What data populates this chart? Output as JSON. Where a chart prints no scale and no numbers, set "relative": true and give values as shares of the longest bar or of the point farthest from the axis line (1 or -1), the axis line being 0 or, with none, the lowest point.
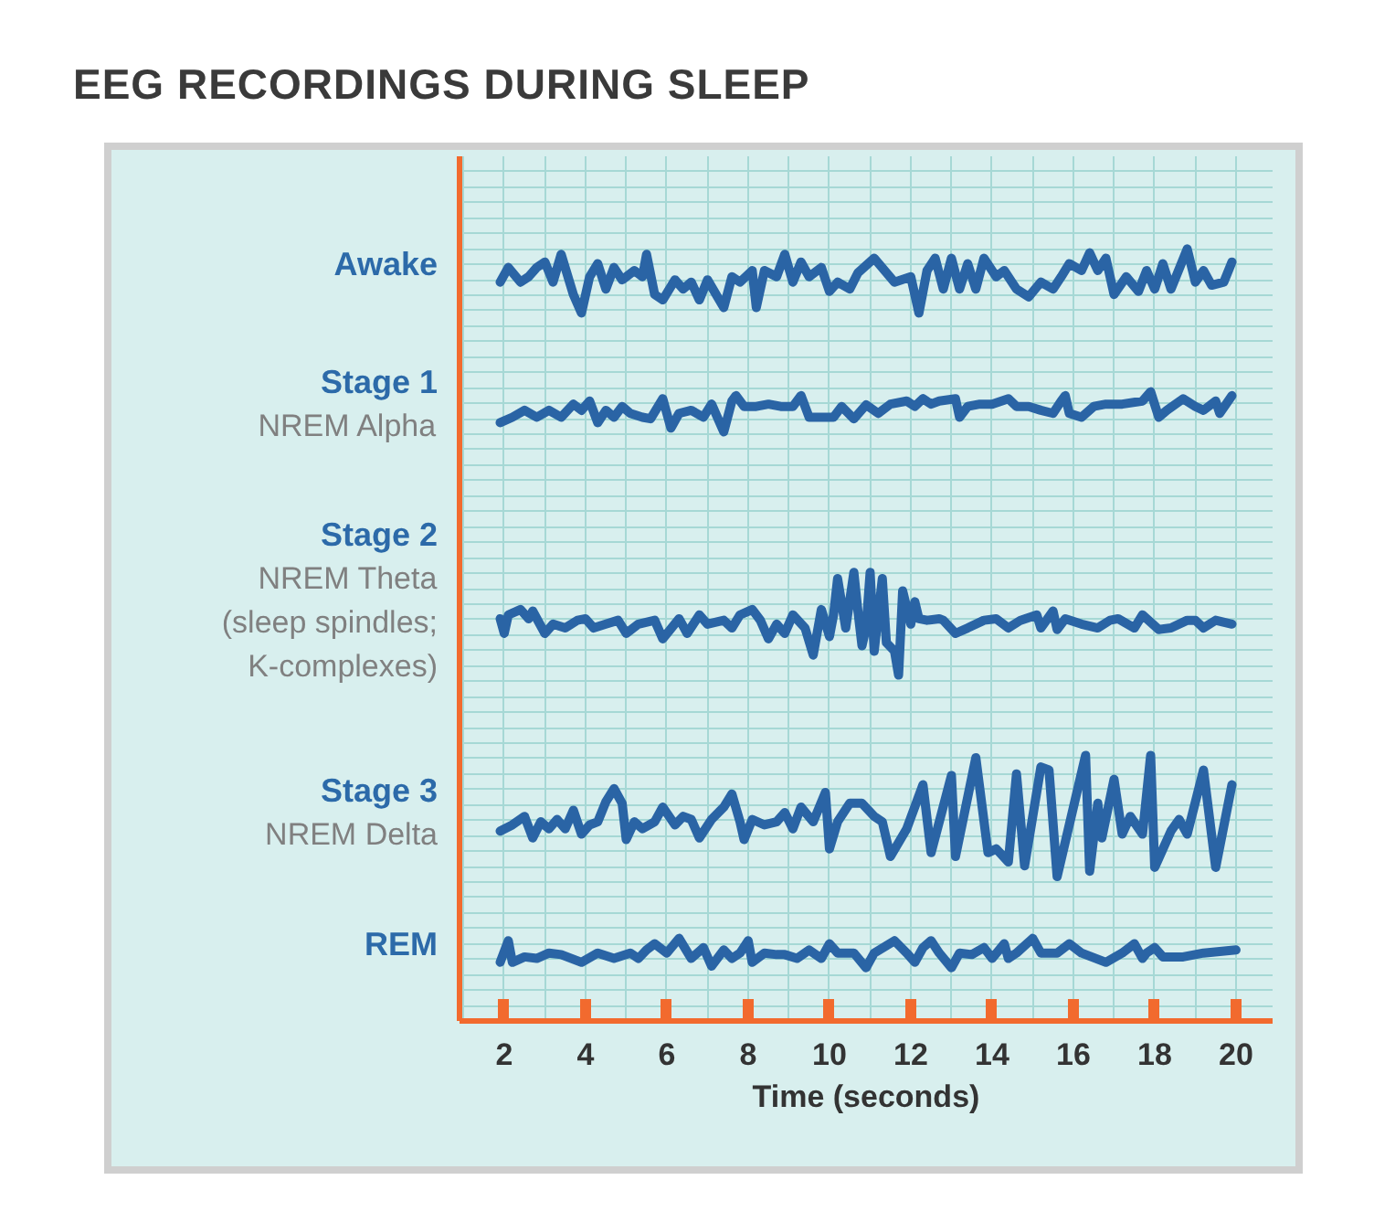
{
  "chart_data": {
    "type": "line",
    "title": "EEG RECORDINGS DURING SLEEP",
    "xlabel": "Time (seconds)",
    "relative": true,
    "xlim": [
      0.9,
      20.9
    ],
    "xticks": [
      2,
      4,
      6,
      8,
      10,
      12,
      14,
      16,
      18,
      20
    ],
    "grid": true,
    "series": [
      {
        "name": "Awake",
        "color": "#2a64a5",
        "x": [
          1.9,
          2.1,
          2.4,
          2.6,
          2.8,
          3.0,
          3.2,
          3.4,
          3.7,
          3.9,
          4.1,
          4.3,
          4.5,
          4.7,
          4.9,
          5.2,
          5.4,
          5.5,
          5.7,
          5.9,
          6.2,
          6.4,
          6.6,
          6.8,
          7.0,
          7.4,
          7.6,
          7.8,
          8.1,
          8.2,
          8.4,
          8.7,
          8.9,
          9.1,
          9.3,
          9.5,
          9.8,
          10.0,
          10.2,
          10.5,
          10.7,
          11.1,
          11.6,
          12.0,
          12.2,
          12.4,
          12.6,
          12.8,
          13.0,
          13.2,
          13.4,
          13.6,
          13.8,
          14.1,
          14.3,
          14.6,
          14.9,
          15.2,
          15.5,
          15.7,
          15.9,
          16.2,
          16.4,
          16.6,
          16.8,
          17.0,
          17.3,
          17.6,
          17.8,
          18.0,
          18.2,
          18.4,
          18.8,
          19.0,
          19.2,
          19.4,
          19.7,
          19.9
        ],
        "values": [
          0.957,
          0.976,
          0.957,
          0.964,
          0.976,
          0.983,
          0.957,
          0.993,
          0.941,
          0.917,
          0.964,
          0.981,
          0.948,
          0.976,
          0.96,
          0.972,
          0.964,
          0.993,
          0.941,
          0.934,
          0.96,
          0.948,
          0.957,
          0.934,
          0.96,
          0.924,
          0.964,
          0.957,
          0.972,
          0.924,
          0.972,
          0.964,
          0.993,
          0.957,
          0.983,
          0.964,
          0.976,
          0.945,
          0.957,
          0.948,
          0.969,
          0.988,
          0.957,
          0.964,
          0.917,
          0.972,
          0.988,
          0.948,
          0.988,
          0.948,
          0.981,
          0.948,
          0.988,
          0.964,
          0.972,
          0.948,
          0.938,
          0.957,
          0.948,
          0.964,
          0.981,
          0.972,
          0.995,
          0.972,
          0.988,
          0.941,
          0.964,
          0.945,
          0.972,
          0.948,
          0.981,
          0.948,
          1.0,
          0.957,
          0.972,
          0.953,
          0.957,
          0.983
        ]
      },
      {
        "name": "Stage 1\nNREM Alpha",
        "color": "#2a64a5",
        "x": [
          1.9,
          2.2,
          2.5,
          2.8,
          3.1,
          3.4,
          3.7,
          3.9,
          4.1,
          4.3,
          4.5,
          4.7,
          4.9,
          5.1,
          5.4,
          5.6,
          5.9,
          6.1,
          6.3,
          6.6,
          6.9,
          7.1,
          7.4,
          7.6,
          7.7,
          7.9,
          8.2,
          8.5,
          8.8,
          9.1,
          9.3,
          9.5,
          9.8,
          10.1,
          10.3,
          10.6,
          10.9,
          11.2,
          11.5,
          11.9,
          12.1,
          12.3,
          12.5,
          12.7,
          13.1,
          13.2,
          13.4,
          13.7,
          14.0,
          14.4,
          14.6,
          14.9,
          15.2,
          15.5,
          15.7,
          15.8,
          15.9,
          16.2,
          16.5,
          16.8,
          17.2,
          17.7,
          17.9,
          18.1,
          18.3,
          18.7,
          19.0,
          19.2,
          19.5,
          19.6,
          19.9
        ],
        "values": [
          0.775,
          0.782,
          0.791,
          0.782,
          0.791,
          0.782,
          0.799,
          0.791,
          0.803,
          0.775,
          0.791,
          0.782,
          0.796,
          0.787,
          0.782,
          0.78,
          0.806,
          0.768,
          0.787,
          0.791,
          0.782,
          0.799,
          0.763,
          0.803,
          0.81,
          0.796,
          0.796,
          0.799,
          0.796,
          0.796,
          0.81,
          0.782,
          0.782,
          0.782,
          0.796,
          0.78,
          0.798,
          0.787,
          0.799,
          0.803,
          0.796,
          0.806,
          0.799,
          0.803,
          0.806,
          0.782,
          0.796,
          0.799,
          0.799,
          0.806,
          0.796,
          0.796,
          0.791,
          0.787,
          0.803,
          0.81,
          0.787,
          0.782,
          0.796,
          0.799,
          0.799,
          0.803,
          0.815,
          0.782,
          0.791,
          0.806,
          0.796,
          0.791,
          0.803,
          0.787,
          0.81
        ]
      },
      {
        "name": "Stage 2\nNREM Theta\n(sleep spindles;\nK-complexes)",
        "color": "#2a64a5",
        "x": [
          1.9,
          2.0,
          2.1,
          2.4,
          2.6,
          2.7,
          3.0,
          3.2,
          3.5,
          3.8,
          4.0,
          4.2,
          4.5,
          4.8,
          5.0,
          5.3,
          5.7,
          5.9,
          6.3,
          6.5,
          6.8,
          7.0,
          7.4,
          7.6,
          7.8,
          8.1,
          8.3,
          8.5,
          8.7,
          8.9,
          9.1,
          9.4,
          9.6,
          9.8,
          10.0,
          10.1,
          10.2,
          10.4,
          10.6,
          10.7,
          10.8,
          10.9,
          11.0,
          11.1,
          11.3,
          11.4,
          11.6,
          11.7,
          11.8,
          12.0,
          12.1,
          12.2,
          12.4,
          12.7,
          12.8,
          13.1,
          13.4,
          13.8,
          14.1,
          14.4,
          14.7,
          15.1,
          15.2,
          15.5,
          15.6,
          15.8,
          16.2,
          16.6,
          16.9,
          17.1,
          17.5,
          17.7,
          18.1,
          18.4,
          18.8,
          19.0,
          19.2,
          19.5,
          19.9
        ],
        "values": [
          0.521,
          0.502,
          0.526,
          0.533,
          0.521,
          0.531,
          0.502,
          0.514,
          0.509,
          0.519,
          0.521,
          0.509,
          0.514,
          0.519,
          0.502,
          0.514,
          0.519,
          0.495,
          0.521,
          0.502,
          0.526,
          0.514,
          0.519,
          0.509,
          0.526,
          0.533,
          0.519,
          0.495,
          0.514,
          0.502,
          0.526,
          0.509,
          0.474,
          0.533,
          0.498,
          0.526,
          0.573,
          0.509,
          0.581,
          0.531,
          0.486,
          0.509,
          0.581,
          0.479,
          0.573,
          0.49,
          0.479,
          0.448,
          0.557,
          0.514,
          0.543,
          0.521,
          0.519,
          0.521,
          0.519,
          0.502,
          0.509,
          0.519,
          0.521,
          0.509,
          0.519,
          0.526,
          0.509,
          0.531,
          0.507,
          0.521,
          0.514,
          0.509,
          0.519,
          0.521,
          0.509,
          0.526,
          0.507,
          0.509,
          0.519,
          0.519,
          0.509,
          0.519,
          0.514
        ]
      },
      {
        "name": "Stage 3\nNREM Delta",
        "color": "#2a64a5",
        "x": [
          1.9,
          2.2,
          2.5,
          2.7,
          2.9,
          3.1,
          3.3,
          3.5,
          3.7,
          3.9,
          4.1,
          4.3,
          4.5,
          4.7,
          4.9,
          5.0,
          5.2,
          5.4,
          5.7,
          5.9,
          6.2,
          6.4,
          6.6,
          6.8,
          7.1,
          7.4,
          7.6,
          7.8,
          7.9,
          8.1,
          8.4,
          8.7,
          8.9,
          9.1,
          9.3,
          9.6,
          9.9,
          10.0,
          10.2,
          10.5,
          10.8,
          11.1,
          11.3,
          11.5,
          11.9,
          12.3,
          12.5,
          13.0,
          13.1,
          13.6,
          13.9,
          14.1,
          14.4,
          14.6,
          14.8,
          15.2,
          15.4,
          15.6,
          16.3,
          16.4,
          16.6,
          16.7,
          17.0,
          17.2,
          17.4,
          17.7,
          17.9,
          18.0,
          18.4,
          18.6,
          18.8,
          19.2,
          19.5,
          19.9
        ],
        "values": [
          0.246,
          0.254,
          0.265,
          0.237,
          0.258,
          0.249,
          0.261,
          0.249,
          0.273,
          0.242,
          0.254,
          0.258,
          0.284,
          0.301,
          0.282,
          0.235,
          0.258,
          0.249,
          0.258,
          0.277,
          0.254,
          0.265,
          0.261,
          0.237,
          0.261,
          0.277,
          0.294,
          0.258,
          0.235,
          0.261,
          0.254,
          0.258,
          0.27,
          0.249,
          0.277,
          0.258,
          0.296,
          0.223,
          0.258,
          0.282,
          0.282,
          0.265,
          0.258,
          0.213,
          0.249,
          0.306,
          0.218,
          0.318,
          0.213,
          0.341,
          0.218,
          0.223,
          0.206,
          0.32,
          0.201,
          0.329,
          0.325,
          0.187,
          0.344,
          0.194,
          0.282,
          0.237,
          0.313,
          0.242,
          0.265,
          0.242,
          0.344,
          0.199,
          0.246,
          0.261,
          0.242,
          0.325,
          0.199,
          0.306
        ]
      },
      {
        "name": "REM",
        "color": "#2a64a5",
        "x": [
          1.9,
          2.1,
          2.2,
          2.5,
          2.8,
          3.1,
          3.4,
          3.9,
          4.3,
          4.7,
          5.1,
          5.3,
          5.5,
          5.7,
          6.0,
          6.3,
          6.6,
          6.9,
          7.1,
          7.4,
          7.6,
          7.8,
          8.0,
          8.1,
          8.4,
          8.7,
          8.9,
          9.2,
          9.5,
          9.8,
          10.0,
          10.2,
          10.6,
          10.9,
          11.1,
          11.6,
          11.9,
          12.1,
          12.3,
          12.5,
          12.7,
          13.0,
          13.2,
          13.5,
          13.8,
          14.0,
          14.3,
          14.4,
          14.6,
          15.0,
          15.2,
          15.6,
          15.9,
          16.2,
          16.8,
          17.2,
          17.5,
          17.7,
          17.8,
          18.0,
          18.2,
          18.7,
          19.2,
          20.0
        ],
        "values": [
          0.076,
          0.104,
          0.076,
          0.083,
          0.081,
          0.088,
          0.086,
          0.076,
          0.088,
          0.081,
          0.088,
          0.081,
          0.092,
          0.1,
          0.088,
          0.107,
          0.081,
          0.095,
          0.071,
          0.092,
          0.081,
          0.088,
          0.104,
          0.076,
          0.088,
          0.086,
          0.086,
          0.081,
          0.092,
          0.081,
          0.1,
          0.088,
          0.088,
          0.069,
          0.088,
          0.104,
          0.088,
          0.076,
          0.095,
          0.104,
          0.088,
          0.069,
          0.088,
          0.086,
          0.095,
          0.081,
          0.1,
          0.081,
          0.088,
          0.107,
          0.088,
          0.088,
          0.1,
          0.088,
          0.076,
          0.088,
          0.1,
          0.081,
          0.088,
          0.095,
          0.083,
          0.083,
          0.088,
          0.092
        ]
      }
    ]
  }
}
